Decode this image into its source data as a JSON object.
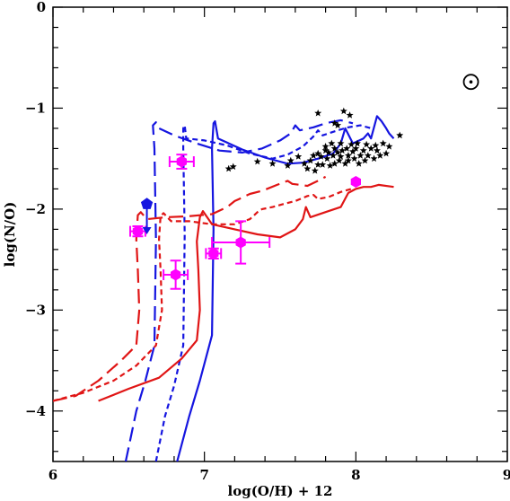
{
  "chart_data": {
    "type": "scatter",
    "xlabel": "log(O/H) + 12",
    "ylabel": "log(N/O)",
    "xlim": [
      6,
      9
    ],
    "ylim": [
      -4.5,
      0
    ],
    "x_ticks": [
      "6",
      "7",
      "8",
      "9"
    ],
    "y_ticks": [
      "0",
      "−1",
      "−2",
      "−3",
      "−4"
    ],
    "colors": {
      "blue": "#1515e0",
      "red": "#e01515",
      "magenta": "#ff00ff",
      "black": "#000000"
    },
    "symbols": {
      "sun": "sun-symbol-icon"
    },
    "sun_position": [
      8.76,
      -0.74
    ],
    "blue_models": [
      {
        "style": "solid",
        "points": [
          [
            6.82,
            -4.5
          ],
          [
            6.9,
            -4.05
          ],
          [
            6.97,
            -3.7
          ],
          [
            7.05,
            -3.25
          ],
          [
            7.06,
            -2.2
          ],
          [
            7.05,
            -1.4
          ],
          [
            7.06,
            -1.15
          ],
          [
            7.07,
            -1.13
          ],
          [
            7.09,
            -1.3
          ],
          [
            7.25,
            -1.41
          ],
          [
            7.4,
            -1.49
          ],
          [
            7.55,
            -1.55
          ],
          [
            7.65,
            -1.54
          ],
          [
            7.75,
            -1.5
          ],
          [
            7.85,
            -1.45
          ],
          [
            7.9,
            -1.35
          ],
          [
            7.93,
            -1.2
          ],
          [
            7.98,
            -1.35
          ],
          [
            8.05,
            -1.3
          ],
          [
            8.08,
            -1.25
          ],
          [
            8.1,
            -1.3
          ],
          [
            8.14,
            -1.08
          ],
          [
            8.17,
            -1.13
          ],
          [
            8.2,
            -1.2
          ],
          [
            8.22,
            -1.25
          ],
          [
            8.25,
            -1.3
          ]
        ]
      },
      {
        "style": "short-dash",
        "points": [
          [
            6.68,
            -4.5
          ],
          [
            6.74,
            -4.05
          ],
          [
            6.8,
            -3.75
          ],
          [
            6.86,
            -3.35
          ],
          [
            6.87,
            -2.25
          ],
          [
            6.86,
            -1.4
          ],
          [
            6.86,
            -1.2
          ],
          [
            6.87,
            -1.17
          ],
          [
            6.88,
            -1.3
          ],
          [
            7.0,
            -1.32
          ],
          [
            7.15,
            -1.37
          ],
          [
            7.3,
            -1.45
          ],
          [
            7.45,
            -1.5
          ],
          [
            7.55,
            -1.46
          ],
          [
            7.65,
            -1.38
          ],
          [
            7.72,
            -1.28
          ],
          [
            7.75,
            -1.22
          ],
          [
            7.78,
            -1.27
          ],
          [
            7.88,
            -1.22
          ],
          [
            7.95,
            -1.19
          ],
          [
            8.03,
            -1.17
          ],
          [
            8.1,
            -1.2
          ]
        ]
      },
      {
        "style": "long-dash",
        "points": [
          [
            6.48,
            -4.5
          ],
          [
            6.55,
            -4.0
          ],
          [
            6.61,
            -3.7
          ],
          [
            6.67,
            -3.35
          ],
          [
            6.68,
            -2.3
          ],
          [
            6.67,
            -1.4
          ],
          [
            6.66,
            -1.17
          ],
          [
            6.68,
            -1.14
          ],
          [
            6.7,
            -1.2
          ],
          [
            6.8,
            -1.27
          ],
          [
            6.95,
            -1.35
          ],
          [
            7.1,
            -1.42
          ],
          [
            7.25,
            -1.44
          ],
          [
            7.38,
            -1.4
          ],
          [
            7.5,
            -1.32
          ],
          [
            7.57,
            -1.25
          ],
          [
            7.6,
            -1.17
          ],
          [
            7.63,
            -1.22
          ],
          [
            7.72,
            -1.19
          ],
          [
            7.8,
            -1.15
          ],
          [
            7.9,
            -1.12
          ],
          [
            7.98,
            -1.15
          ]
        ]
      }
    ],
    "red_models": [
      {
        "style": "solid",
        "points": [
          [
            6.3,
            -3.9
          ],
          [
            6.5,
            -3.78
          ],
          [
            6.7,
            -3.67
          ],
          [
            6.85,
            -3.48
          ],
          [
            6.95,
            -3.3
          ],
          [
            6.97,
            -3.0
          ],
          [
            6.96,
            -2.6
          ],
          [
            6.95,
            -2.32
          ],
          [
            6.97,
            -2.08
          ],
          [
            6.99,
            -2.02
          ],
          [
            7.05,
            -2.15
          ],
          [
            7.2,
            -2.2
          ],
          [
            7.35,
            -2.25
          ],
          [
            7.5,
            -2.28
          ],
          [
            7.6,
            -2.2
          ],
          [
            7.65,
            -2.1
          ],
          [
            7.67,
            -1.98
          ],
          [
            7.7,
            -2.08
          ],
          [
            7.82,
            -2.02
          ],
          [
            7.9,
            -1.98
          ],
          [
            7.95,
            -1.84
          ],
          [
            8.0,
            -1.8
          ],
          [
            8.05,
            -1.78
          ],
          [
            8.1,
            -1.78
          ],
          [
            8.15,
            -1.76
          ],
          [
            8.25,
            -1.78
          ]
        ]
      },
      {
        "style": "short-dash",
        "points": [
          [
            6.0,
            -3.9
          ],
          [
            6.2,
            -3.82
          ],
          [
            6.4,
            -3.7
          ],
          [
            6.55,
            -3.55
          ],
          [
            6.68,
            -3.35
          ],
          [
            6.72,
            -3.0
          ],
          [
            6.71,
            -2.6
          ],
          [
            6.7,
            -2.3
          ],
          [
            6.71,
            -2.07
          ],
          [
            6.73,
            -2.04
          ],
          [
            6.78,
            -2.12
          ],
          [
            6.9,
            -2.12
          ],
          [
            7.05,
            -2.15
          ],
          [
            7.2,
            -2.15
          ],
          [
            7.3,
            -2.1
          ],
          [
            7.35,
            -2.03
          ],
          [
            7.38,
            -2.0
          ],
          [
            7.45,
            -1.98
          ],
          [
            7.52,
            -1.95
          ],
          [
            7.6,
            -1.92
          ],
          [
            7.68,
            -1.87
          ],
          [
            7.72,
            -1.86
          ],
          [
            7.75,
            -1.9
          ],
          [
            7.82,
            -1.88
          ],
          [
            7.9,
            -1.83
          ],
          [
            7.97,
            -1.8
          ]
        ]
      },
      {
        "style": "long-dash",
        "points": [
          [
            6.0,
            -3.9
          ],
          [
            6.15,
            -3.85
          ],
          [
            6.3,
            -3.7
          ],
          [
            6.45,
            -3.5
          ],
          [
            6.55,
            -3.35
          ],
          [
            6.57,
            -3.0
          ],
          [
            6.56,
            -2.6
          ],
          [
            6.55,
            -2.3
          ],
          [
            6.56,
            -2.06
          ],
          [
            6.58,
            -2.03
          ],
          [
            6.62,
            -2.1
          ],
          [
            6.75,
            -2.08
          ],
          [
            6.9,
            -2.07
          ],
          [
            7.05,
            -2.05
          ],
          [
            7.15,
            -1.98
          ],
          [
            7.2,
            -1.92
          ],
          [
            7.23,
            -1.9
          ],
          [
            7.3,
            -1.85
          ],
          [
            7.38,
            -1.82
          ],
          [
            7.48,
            -1.76
          ],
          [
            7.55,
            -1.72
          ],
          [
            7.58,
            -1.75
          ],
          [
            7.68,
            -1.77
          ],
          [
            7.75,
            -1.72
          ],
          [
            7.8,
            -1.68
          ]
        ]
      }
    ],
    "magenta_points": [
      {
        "x": 6.56,
        "y": -2.22,
        "xerr": 0.05,
        "yerr": 0.05
      },
      {
        "x": 6.85,
        "y": -1.53,
        "xerr": 0.08,
        "yerr": 0.07
      },
      {
        "x": 6.81,
        "y": -2.65,
        "xerr": 0.08,
        "yerr": 0.14
      },
      {
        "x": 7.06,
        "y": -2.44,
        "xerr": 0.05,
        "yerr": 0.05
      },
      {
        "x": 7.24,
        "y": -2.33,
        "xerr": 0.19,
        "yerr": 0.21
      },
      {
        "x": 8.0,
        "y": -1.73,
        "xerr": 0.0,
        "yerr": 0.0
      }
    ],
    "blue_upper_limit": {
      "x": 6.62,
      "y": -1.95,
      "arrow_to": -2.25
    },
    "black_stars": [
      [
        7.16,
        -1.6
      ],
      [
        7.19,
        -1.58
      ],
      [
        7.35,
        -1.53
      ],
      [
        7.45,
        -1.55
      ],
      [
        7.55,
        -1.57
      ],
      [
        7.57,
        -1.52
      ],
      [
        7.62,
        -1.48
      ],
      [
        7.66,
        -1.55
      ],
      [
        7.68,
        -1.6
      ],
      [
        7.7,
        -1.52
      ],
      [
        7.72,
        -1.47
      ],
      [
        7.73,
        -1.62
      ],
      [
        7.75,
        -1.45
      ],
      [
        7.75,
        -1.56
      ],
      [
        7.75,
        -1.05
      ],
      [
        7.77,
        -1.48
      ],
      [
        7.78,
        -1.56
      ],
      [
        7.8,
        -1.42
      ],
      [
        7.8,
        -1.38
      ],
      [
        7.81,
        -1.5
      ],
      [
        7.82,
        -1.44
      ],
      [
        7.83,
        -1.57
      ],
      [
        7.84,
        -1.35
      ],
      [
        7.85,
        -1.47
      ],
      [
        7.86,
        -1.55
      ],
      [
        7.86,
        -1.15
      ],
      [
        7.86,
        -1.4
      ],
      [
        7.88,
        -1.44
      ],
      [
        7.88,
        -1.17
      ],
      [
        7.89,
        -1.52
      ],
      [
        7.9,
        -1.35
      ],
      [
        7.9,
        -1.48
      ],
      [
        7.91,
        -1.42
      ],
      [
        7.92,
        -1.03
      ],
      [
        7.93,
        -1.55
      ],
      [
        7.94,
        -1.4
      ],
      [
        7.95,
        -1.47
      ],
      [
        7.95,
        -1.52
      ],
      [
        7.96,
        -1.07
      ],
      [
        7.97,
        -1.36
      ],
      [
        7.98,
        -1.43
      ],
      [
        7.99,
        -1.5
      ],
      [
        8.0,
        -1.4
      ],
      [
        8.01,
        -1.35
      ],
      [
        8.02,
        -1.55
      ],
      [
        8.03,
        -1.47
      ],
      [
        8.05,
        -1.42
      ],
      [
        8.06,
        -1.52
      ],
      [
        8.07,
        -1.36
      ],
      [
        8.08,
        -1.47
      ],
      [
        8.1,
        -1.4
      ],
      [
        8.12,
        -1.5
      ],
      [
        8.13,
        -1.37
      ],
      [
        8.14,
        -1.42
      ],
      [
        8.16,
        -1.47
      ],
      [
        8.18,
        -1.35
      ],
      [
        8.2,
        -1.45
      ],
      [
        8.22,
        -1.38
      ],
      [
        8.29,
        -1.27
      ]
    ]
  }
}
